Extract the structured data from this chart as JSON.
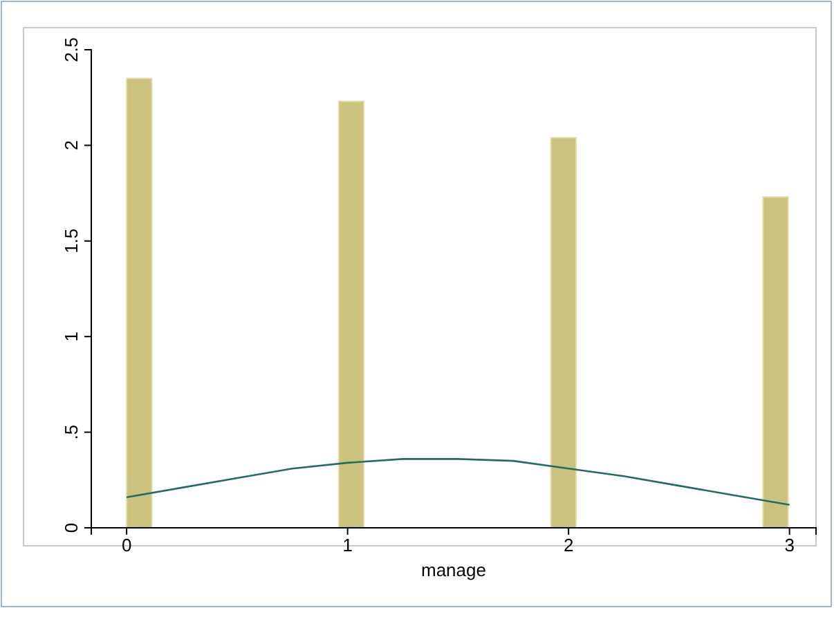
{
  "chart_data": {
    "type": "histogram",
    "xlabel": "manage",
    "color": "#cbc27e",
    "bins": [
      0,
      0.12,
      0.24,
      0.36,
      0.48,
      0.6,
      0.72,
      0.84,
      0.96,
      1.08,
      1.2,
      1.32,
      1.44,
      1.56,
      1.68,
      1.8,
      1.92,
      2.04,
      2.16,
      2.28,
      2.4,
      2.52,
      2.64,
      2.76,
      2.88,
      3
    ],
    "values": [
      2.35,
      0,
      0,
      0,
      0,
      0,
      0,
      0,
      2.23,
      0,
      0,
      0,
      0,
      0,
      0,
      0,
      2.04,
      0,
      0,
      0,
      0,
      0,
      0,
      0,
      1.73
    ],
    "series": [
      {
        "type": "line",
        "color": "#1f6e64",
        "x": [
          0,
          0.25,
          0.5,
          0.75,
          1,
          1.25,
          1.5,
          1.75,
          2,
          2.25,
          2.5,
          2.75,
          3
        ],
        "values": [
          0.16,
          0.21,
          0.26,
          0.31,
          0.34,
          0.36,
          0.36,
          0.35,
          0.31,
          0.27,
          0.22,
          0.17,
          0.12
        ]
      }
    ],
    "xlim": [
      -0.16,
      3.12
    ],
    "xticks": [
      0,
      1,
      2,
      3
    ],
    "ylim": [
      0,
      2.5
    ],
    "yticks": [
      0,
      {
        "value": 0.5,
        "label": ".5"
      },
      1,
      1.5,
      2,
      2.5
    ],
    "grid": false
  }
}
